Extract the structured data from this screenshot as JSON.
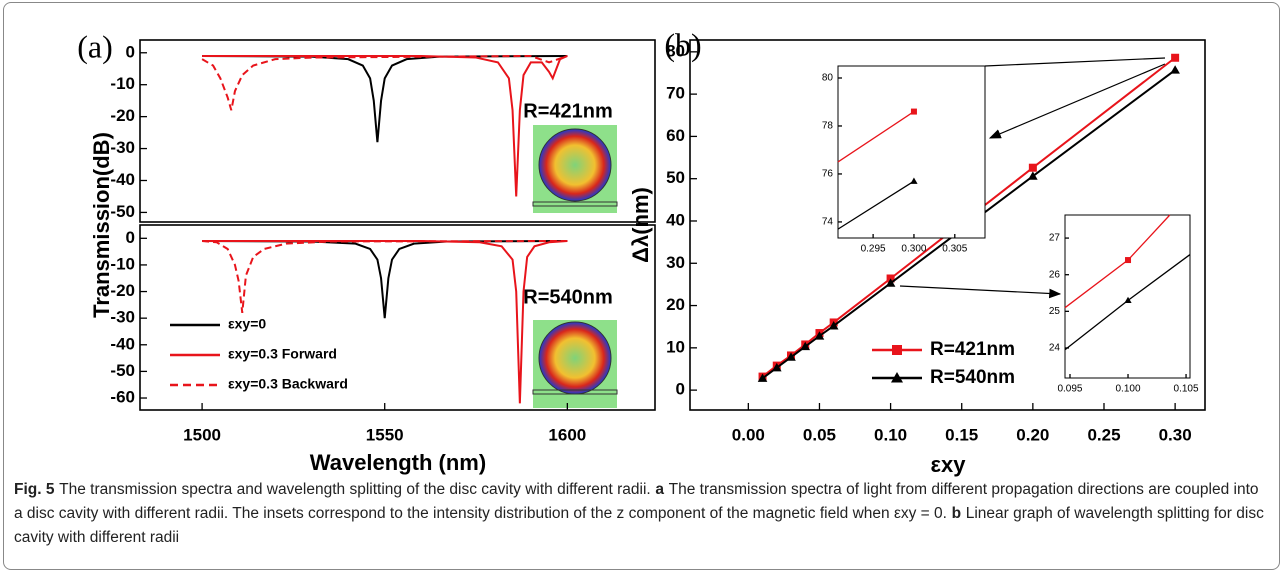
{
  "chart_data": [
    {
      "type": "line",
      "label": "(a)",
      "ylabel": "Transmission(dB)",
      "annotation": "R=421nm",
      "xlim": [
        1483,
        1624
      ],
      "ylim": [
        -53,
        4
      ],
      "yticks": [
        0,
        -10,
        -20,
        -30,
        -40,
        -50
      ],
      "series": [
        {
          "color": "#000000",
          "linestyle": "solid",
          "x": [
            1500,
            1530,
            1540,
            1544,
            1546,
            1547,
            1548,
            1549,
            1550,
            1552,
            1556,
            1565,
            1600
          ],
          "values": [
            -1,
            -1.2,
            -2,
            -4,
            -8,
            -15,
            -28,
            -15,
            -8,
            -4,
            -2,
            -1.2,
            -1
          ]
        },
        {
          "color": "#e8141b",
          "linestyle": "solid",
          "x": [
            1500,
            1560,
            1575,
            1581,
            1584,
            1585,
            1586,
            1587,
            1588,
            1590,
            1593,
            1595,
            1596,
            1597,
            1598,
            1600
          ],
          "values": [
            -1,
            -1,
            -1.5,
            -3,
            -8,
            -18,
            -45,
            -18,
            -7,
            -3,
            -3,
            -6,
            -8,
            -5,
            -2,
            -1
          ]
        },
        {
          "color": "#e8141b",
          "linestyle": "dashed",
          "x": [
            1500,
            1503,
            1505,
            1507,
            1508,
            1509,
            1511,
            1514,
            1520,
            1530,
            1590,
            1595,
            1600
          ],
          "values": [
            -2,
            -4,
            -8,
            -14,
            -18,
            -12,
            -7,
            -4,
            -2,
            -1.5,
            -1,
            -3,
            -1
          ]
        }
      ]
    },
    {
      "type": "line",
      "xlabel": "Wavelength (nm)",
      "annotation": "R=540nm",
      "xlim": [
        1483,
        1624
      ],
      "ylim": [
        -64.5,
        5
      ],
      "xticks": [
        1500,
        1550,
        1600
      ],
      "yticks": [
        0,
        -10,
        -20,
        -30,
        -40,
        -50,
        -60
      ],
      "series": [
        {
          "name": "εxy=0",
          "color": "#000000",
          "linestyle": "solid",
          "x": [
            1500,
            1530,
            1542,
            1546,
            1548,
            1549,
            1550,
            1551,
            1552,
            1554,
            1558,
            1567,
            1600
          ],
          "values": [
            -1,
            -1.2,
            -2,
            -4,
            -8,
            -15,
            -30,
            -15,
            -8,
            -4,
            -2,
            -1.2,
            -1
          ]
        },
        {
          "name": "εxy=0.3 Forward",
          "color": "#e8141b",
          "linestyle": "solid",
          "x": [
            1500,
            1560,
            1576,
            1582,
            1585,
            1586,
            1587,
            1588,
            1589,
            1591,
            1595,
            1600
          ],
          "values": [
            -1,
            -1,
            -1.5,
            -3,
            -8,
            -20,
            -62,
            -20,
            -7,
            -3,
            -1.5,
            -1
          ]
        },
        {
          "name": "εxy=0.3 Backward",
          "color": "#e8141b",
          "linestyle": "dashed",
          "x": [
            1500,
            1504,
            1507,
            1509,
            1510,
            1511,
            1512,
            1514,
            1517,
            1523,
            1535,
            1600
          ],
          "values": [
            -1,
            -1.5,
            -4,
            -10,
            -16,
            -28,
            -14,
            -7,
            -4,
            -2,
            -1.2,
            -1
          ]
        }
      ]
    },
    {
      "type": "line",
      "label": "(b)",
      "xlabel": "εxy",
      "ylabel": "Δλ(nm)",
      "xlim": [
        -0.041,
        0.321
      ],
      "ylim": [
        -4.7,
        82.8
      ],
      "xticks": [
        {
          "value": 0,
          "label": "0.00"
        },
        0.05,
        {
          "value": 0.1,
          "label": "0.10"
        },
        0.15,
        {
          "value": 0.2,
          "label": "0.20"
        },
        0.25,
        {
          "value": 0.3,
          "label": "0.30"
        }
      ],
      "yticks": [
        0,
        10,
        20,
        30,
        40,
        50,
        60,
        70,
        80
      ],
      "series": [
        {
          "name": "R=421nm",
          "color": "#e8141b",
          "marker": "square",
          "x": [
            0.01,
            0.02,
            0.03,
            0.04,
            0.05,
            0.06,
            0.1,
            0.2,
            0.3
          ],
          "values": [
            3.2,
            5.8,
            8.2,
            10.8,
            13.5,
            16,
            26.4,
            52.6,
            78.6
          ]
        },
        {
          "name": "R=540nm",
          "color": "#000000",
          "marker": "triangle",
          "x": [
            0.01,
            0.02,
            0.03,
            0.04,
            0.05,
            0.06,
            0.1,
            0.2,
            0.3
          ],
          "values": [
            2.8,
            5.3,
            7.8,
            10.3,
            12.8,
            15.2,
            25.3,
            50.6,
            75.7
          ]
        }
      ]
    },
    {
      "type": "line",
      "xlim": [
        0.2907,
        0.3087
      ],
      "ylim": [
        73.33,
        80.5
      ],
      "xticks": [
        0.295,
        {
          "value": 0.3,
          "label": "0.300"
        },
        0.305
      ],
      "yticks": [
        74,
        76,
        78,
        80
      ],
      "series": [
        {
          "color": "#e8141b",
          "marker": "square",
          "marker_at": [
            1
          ],
          "x": [
            0.2907,
            0.3
          ],
          "values": [
            76.5,
            78.6
          ]
        },
        {
          "color": "#000000",
          "marker": "triangle",
          "marker_at": [
            1
          ],
          "x": [
            0.2907,
            0.3
          ],
          "values": [
            73.7,
            75.7
          ]
        }
      ]
    },
    {
      "type": "line",
      "xlim": [
        0.09457,
        0.10534
      ],
      "ylim": [
        23.18,
        27.63
      ],
      "xticks": [
        0.095,
        {
          "value": 0.1,
          "label": "0.100"
        },
        0.105
      ],
      "yticks": [
        24,
        25,
        26,
        27
      ],
      "series": [
        {
          "color": "#e8141b",
          "marker": "square",
          "marker_at": [
            1
          ],
          "x": [
            0.09457,
            0.1,
            0.1036
          ],
          "values": [
            25.1,
            26.4,
            27.63
          ]
        },
        {
          "color": "#000000",
          "marker": "triangle",
          "marker_at": [
            1
          ],
          "x": [
            0.09457,
            0.1,
            0.10534
          ],
          "values": [
            23.95,
            25.3,
            26.55
          ]
        }
      ]
    }
  ],
  "caption": [
    "Fig. 5",
    "The transmission spectra and wavelength splitting of the disc cavity with different radii.",
    "a",
    "The transmission spectra of light from different propagation directions are coupled into a disc cavity with different radii. The insets correspond to the intensity distribution of the z component of the magnetic field when εxy = 0.",
    "b",
    "Linear graph of wavelength splitting for disc cavity with different radii"
  ]
}
